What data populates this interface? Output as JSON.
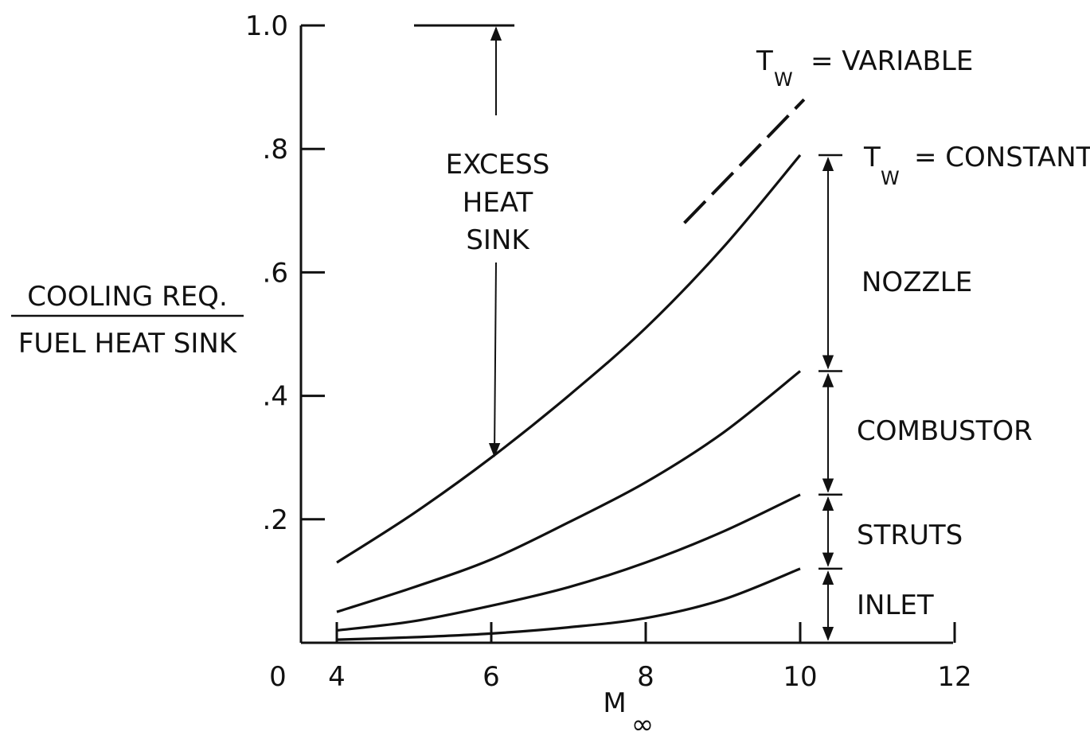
{
  "chart_data": {
    "type": "line",
    "xlabel": "M",
    "xlabel_sub": "∞",
    "ylabel_num": "COOLING REQ.",
    "ylabel_den": "FUEL HEAT SINK",
    "xlim": [
      4,
      12
    ],
    "ylim": [
      0,
      1.0
    ],
    "x_origin_label": "0",
    "x_ticks": [
      {
        "value": 4,
        "label": "4"
      },
      {
        "value": 6,
        "label": "6"
      },
      {
        "value": 8,
        "label": "8"
      },
      {
        "value": 10,
        "label": "10"
      },
      {
        "value": 12,
        "label": "12"
      }
    ],
    "y_ticks": [
      {
        "value": 0.2,
        "label": ".2"
      },
      {
        "value": 0.4,
        "label": ".4"
      },
      {
        "value": 0.6,
        "label": ".6"
      },
      {
        "value": 0.8,
        "label": ".8"
      },
      {
        "value": 1.0,
        "label": "1.0"
      }
    ],
    "grid": false,
    "series": [
      {
        "x": [
          4,
          5,
          6,
          7,
          8,
          9,
          10
        ],
        "y": [
          0.005,
          0.009,
          0.015,
          0.025,
          0.04,
          0.07,
          0.12
        ]
      },
      {
        "x": [
          4,
          5,
          6,
          7,
          8,
          9,
          10
        ],
        "y": [
          0.02,
          0.035,
          0.06,
          0.09,
          0.13,
          0.18,
          0.24
        ]
      },
      {
        "x": [
          4,
          5,
          6,
          7,
          8,
          9,
          10
        ],
        "y": [
          0.05,
          0.09,
          0.135,
          0.195,
          0.26,
          0.34,
          0.44
        ]
      },
      {
        "x": [
          4,
          5,
          6,
          7,
          8,
          9,
          10
        ],
        "y": [
          0.13,
          0.21,
          0.3,
          0.4,
          0.51,
          0.64,
          0.79
        ]
      }
    ],
    "variable_line": {
      "x": [
        8.5,
        10.05
      ],
      "y": [
        0.68,
        0.88
      ],
      "style": "dashed"
    },
    "annotations": {
      "tw_variable": {
        "prefix": "T",
        "sub": "W",
        "text": "= VARIABLE"
      },
      "tw_constant": {
        "prefix": "T",
        "sub": "W",
        "text": "= CONSTANT"
      },
      "excess": [
        "EXCESS",
        "HEAT",
        "SINK"
      ],
      "bands": [
        {
          "label": "NOZZLE",
          "from": 0.44,
          "to": 0.79
        },
        {
          "label": "COMBUSTOR",
          "from": 0.24,
          "to": 0.44
        },
        {
          "label": "STRUTS",
          "from": 0.12,
          "to": 0.24
        },
        {
          "label": "INLET",
          "from": 0.0,
          "to": 0.12
        }
      ]
    }
  }
}
